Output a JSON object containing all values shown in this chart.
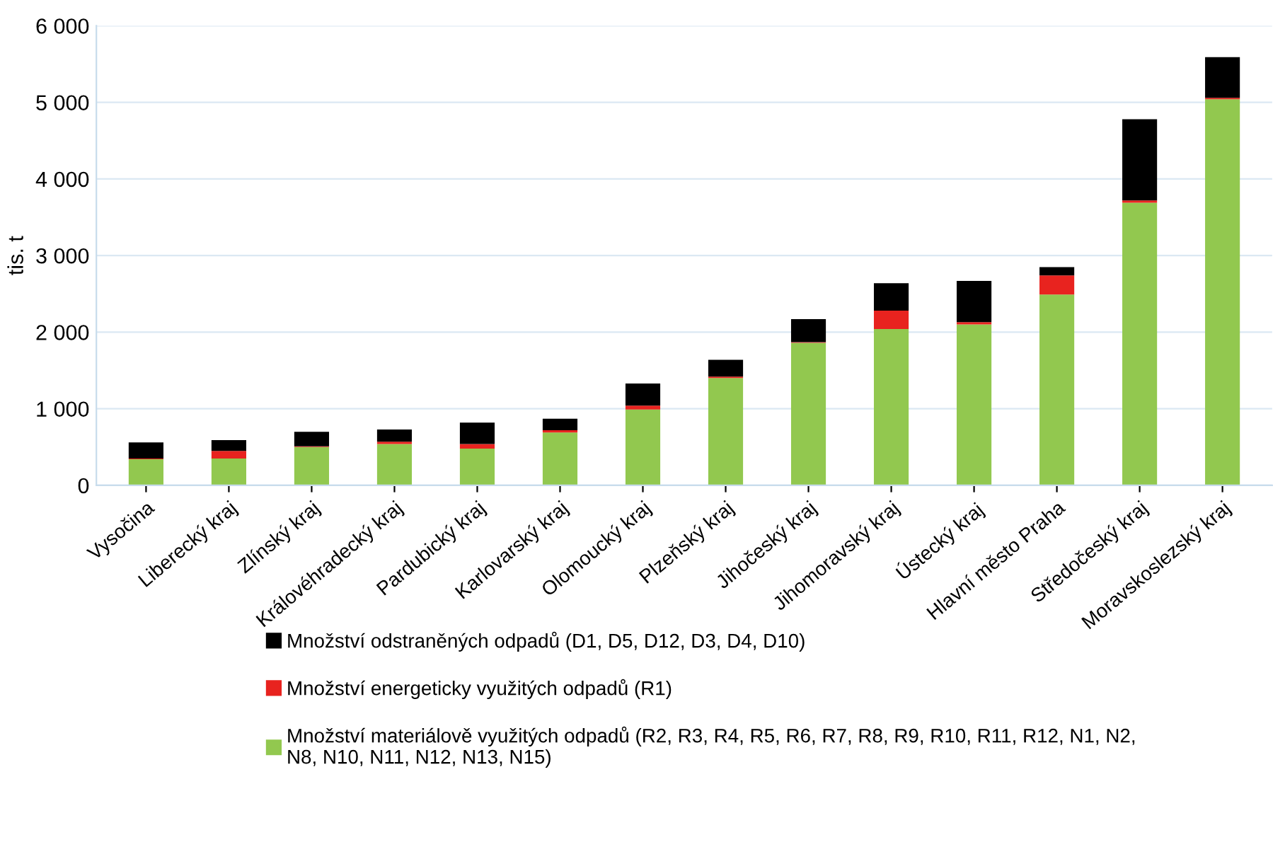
{
  "chart_data": {
    "type": "bar",
    "stacked": true,
    "ylabel": "tis. t",
    "categories": [
      "Vysočina",
      "Liberecký kraj",
      "Zlínský kraj",
      "Královéhradecký kraj",
      "Pardubický kraj",
      "Karlovarský kraj",
      "Olomoucký kraj",
      "Plzeňský kraj",
      "Jihočeský kraj",
      "Jihomoravský kraj",
      "Ústecký kraj",
      "Hlavní město Praha",
      "Středočeský kraj",
      "Moravskoslezský kraj"
    ],
    "series": [
      {
        "name": "Množství materiálově využitých odpadů (R2, R3, R4, R5, R6, R7, R8, R9, R10, R11, R12, N1, N2,\nN8, N10, N11, N12, N13, N15)",
        "color": "#92c84f",
        "values": [
          340,
          350,
          500,
          540,
          480,
          690,
          990,
          1400,
          1860,
          2040,
          2100,
          2490,
          3690,
          5040
        ]
      },
      {
        "name": "Množství energeticky využitých odpadů (R1)",
        "color": "#e8231f",
        "values": [
          10,
          100,
          10,
          30,
          60,
          30,
          50,
          20,
          10,
          240,
          30,
          250,
          30,
          20
        ]
      },
      {
        "name": "Množství odstraněných odpadů (D1, D5, D12, D3, D4, D10)",
        "color": "#000000",
        "values": [
          210,
          140,
          190,
          160,
          280,
          150,
          290,
          220,
          300,
          360,
          540,
          110,
          1060,
          530
        ]
      }
    ],
    "ylim": [
      0,
      6000
    ],
    "yticks": [
      0,
      {
        "value": 1000,
        "label": "1 000"
      },
      {
        "value": 2000,
        "label": "2 000"
      },
      {
        "value": 3000,
        "label": "3 000"
      },
      {
        "value": 4000,
        "label": "4 000"
      },
      {
        "value": 5000,
        "label": "5 000"
      },
      {
        "value": 6000,
        "label": "6 000"
      }
    ],
    "grid": "y",
    "legend": "bottom"
  }
}
